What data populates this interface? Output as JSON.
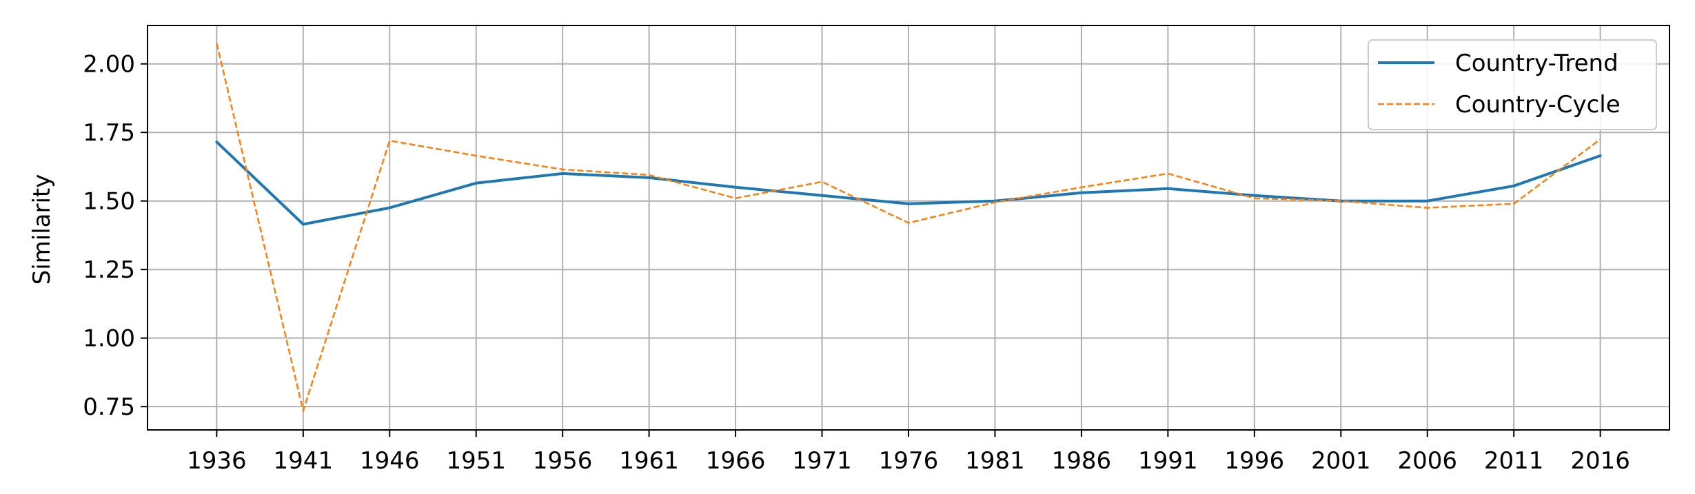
{
  "chart_data": {
    "type": "line",
    "title": "",
    "xlabel": "",
    "ylabel": "Similarity",
    "x": [
      1936,
      1941,
      1946,
      1951,
      1956,
      1961,
      1966,
      1971,
      1976,
      1981,
      1986,
      1991,
      1996,
      2001,
      2006,
      2011,
      2016
    ],
    "xlim": [
      1932,
      2020
    ],
    "ylim": [
      0.665,
      2.14
    ],
    "yticks": [
      "0.75",
      "1.00",
      "1.25",
      "1.50",
      "1.75",
      "2.00"
    ],
    "grid": true,
    "legend_position": "top-right",
    "series": [
      {
        "name": "Country-Trend",
        "color": "#1f77b4",
        "style": "solid",
        "values": [
          1.715,
          1.415,
          1.475,
          1.565,
          1.6,
          1.585,
          1.55,
          1.52,
          1.49,
          1.5,
          1.53,
          1.545,
          1.52,
          1.5,
          1.5,
          1.555,
          1.665
        ]
      },
      {
        "name": "Country-Cycle",
        "color": "#ff7f0e",
        "style": "dashed",
        "values": [
          2.075,
          0.735,
          1.72,
          1.665,
          1.615,
          1.595,
          1.51,
          1.57,
          1.42,
          1.495,
          1.55,
          1.6,
          1.51,
          1.5,
          1.475,
          1.49,
          1.725
        ]
      }
    ]
  }
}
